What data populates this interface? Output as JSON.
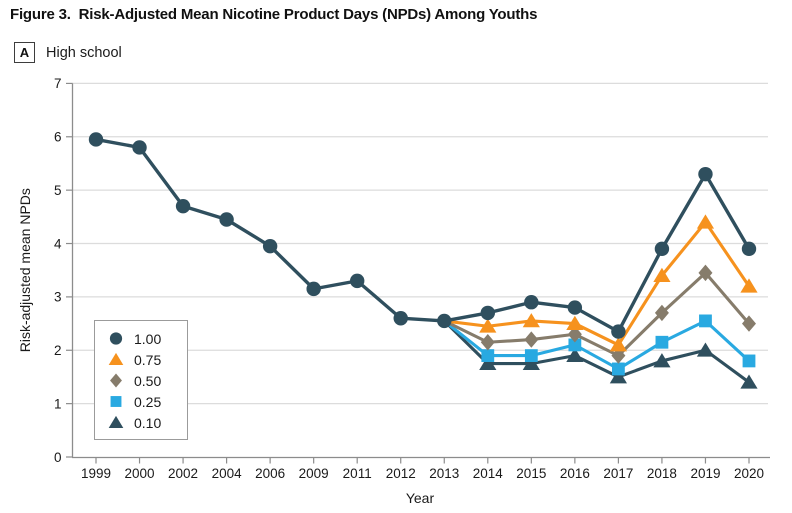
{
  "figure": {
    "title": "Figure 3.  Risk-Adjusted Mean Nicotine Product Days (NPDs) Among Youths"
  },
  "panel": {
    "label": "A",
    "title": "High school"
  },
  "colors": {
    "series_100": "#2F4F5E",
    "series_075": "#F6921E",
    "series_050": "#867C6B",
    "series_025": "#29A9E1",
    "series_010": "#2F4F5E",
    "grid": "#DCDCDC",
    "axis": "#8C8C8C",
    "text": "#1A1A1A"
  },
  "chart_data": {
    "type": "line",
    "title": "",
    "xlabel": "Year",
    "ylabel": "Risk-adjusted mean NPDs",
    "ylim": [
      0,
      7
    ],
    "yticks": [
      0,
      1,
      2,
      3,
      4,
      5,
      6,
      7
    ],
    "grid": true,
    "legend_position": "lower-left",
    "categories": [
      "1999",
      "2000",
      "2002",
      "2004",
      "2006",
      "2009",
      "2011",
      "2012",
      "2013",
      "2014",
      "2015",
      "2016",
      "2017",
      "2018",
      "2019",
      "2020"
    ],
    "series": [
      {
        "name": "1.00",
        "marker": "circle",
        "color_key": "series_100",
        "start_index": 0,
        "values": [
          5.95,
          5.8,
          4.7,
          4.45,
          3.95,
          3.15,
          3.3,
          2.6,
          2.55,
          2.7,
          2.9,
          2.8,
          2.35,
          3.9,
          5.3,
          3.9
        ]
      },
      {
        "name": "0.75",
        "marker": "triangle-up",
        "color_key": "series_075",
        "start_index": 8,
        "values": [
          2.55,
          2.45,
          2.55,
          2.5,
          2.1,
          3.4,
          4.4,
          3.2
        ]
      },
      {
        "name": "0.50",
        "marker": "diamond",
        "color_key": "series_050",
        "start_index": 8,
        "values": [
          2.55,
          2.15,
          2.2,
          2.3,
          1.9,
          2.7,
          3.45,
          2.5
        ]
      },
      {
        "name": "0.25",
        "marker": "square",
        "color_key": "series_025",
        "start_index": 8,
        "values": [
          2.55,
          1.9,
          1.9,
          2.1,
          1.65,
          2.15,
          2.55,
          1.8
        ]
      },
      {
        "name": "0.10",
        "marker": "triangle-up",
        "color_key": "series_010",
        "start_index": 8,
        "values": [
          2.55,
          1.75,
          1.75,
          1.9,
          1.5,
          1.8,
          2.0,
          1.4
        ]
      }
    ]
  }
}
